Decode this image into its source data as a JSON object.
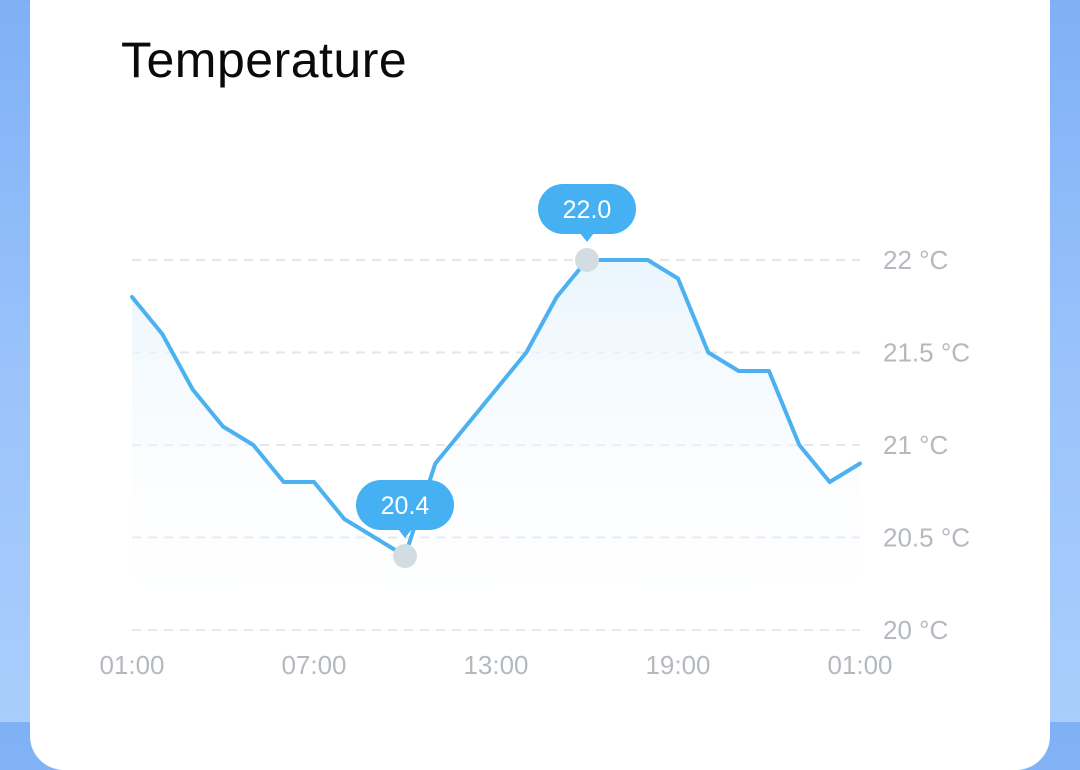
{
  "card": {
    "title": "Temperature"
  },
  "colors": {
    "line": "#4bb1ef",
    "area_top": "#e8f4fd",
    "callout": "#45b1f3",
    "marker": "#d3dce3",
    "grid": "#e3e6ea",
    "tick_text": "#b4b9bf",
    "background": "#8fbdf9"
  },
  "chart_data": {
    "type": "area",
    "x_tick_labels": [
      "01:00",
      "07:00",
      "13:00",
      "19:00",
      "01:00"
    ],
    "y_ticks": [
      {
        "value": 20,
        "label": "20 °C"
      },
      {
        "value": 20.5,
        "label": "20.5 °C"
      },
      {
        "value": 21,
        "label": "21 °C"
      },
      {
        "value": 21.5,
        "label": "21.5 °C"
      },
      {
        "value": 22,
        "label": "22 °C"
      }
    ],
    "ylim": [
      20,
      22
    ],
    "x_hours": [
      1,
      2,
      3,
      4,
      5,
      6,
      7,
      8,
      9,
      10,
      11,
      12,
      13,
      14,
      15,
      16,
      17,
      18,
      19,
      20,
      21,
      22,
      23,
      24,
      25
    ],
    "values": [
      21.8,
      21.6,
      21.3,
      21.1,
      21.0,
      20.8,
      20.8,
      20.6,
      20.5,
      20.4,
      20.9,
      21.1,
      21.3,
      21.5,
      21.8,
      22.0,
      22.0,
      22.0,
      21.9,
      21.5,
      21.4,
      21.4,
      21.0,
      20.8,
      20.9
    ],
    "annotations": [
      {
        "label": "22.0",
        "x_hour": 16,
        "value": 22.0,
        "kind": "max"
      },
      {
        "label": "20.4",
        "x_hour": 10,
        "value": 20.4,
        "kind": "min"
      }
    ],
    "grid": "horizontal dashed",
    "y_axis_position": "right"
  }
}
